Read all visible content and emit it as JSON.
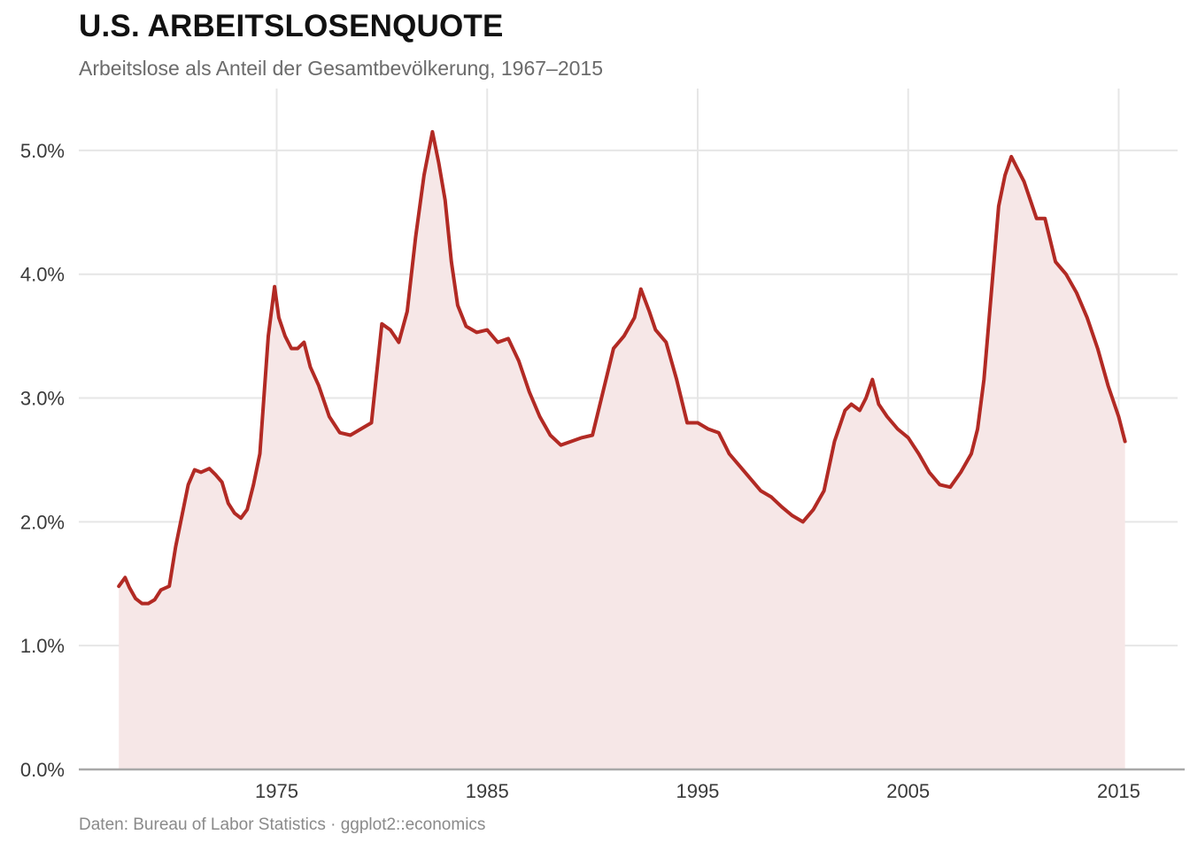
{
  "title": "U.S. ARBEITSLOSENQUOTE",
  "subtitle": "Arbeitslose als Anteil der Gesamtbevölkerung, 1967–2015",
  "caption": "Daten: Bureau of Labor Statistics · ggplot2::economics",
  "colors": {
    "line": "#b22a24",
    "area": "#f6e7e7",
    "grid": "#e6e6e6",
    "axis": "#a8a8a8"
  },
  "chart_data": {
    "type": "area",
    "title": "U.S. ARBEITSLOSENQUOTE",
    "subtitle": "Arbeitslose als Anteil der Gesamtbevölkerung, 1967–2015",
    "xlabel": "",
    "ylabel": "",
    "xlim": [
      1965.6,
      2017.8
    ],
    "ylim": [
      0,
      5.5
    ],
    "grid": true,
    "legend": "none",
    "x_ticks": [
      1975,
      1985,
      1995,
      2005,
      2015
    ],
    "x_tick_labels": [
      "1975",
      "1985",
      "1995",
      "2005",
      "2015"
    ],
    "y_ticks": [
      0,
      1,
      2,
      3,
      4,
      5
    ],
    "y_tick_labels": [
      "0.0%",
      "1.0%",
      "2.0%",
      "3.0%",
      "4.0%",
      "5.0%"
    ],
    "series": [
      {
        "x": [
          1967.5,
          1967.8,
          1968.0,
          1968.3,
          1968.6,
          1968.9,
          1969.2,
          1969.5,
          1969.9,
          1970.2,
          1970.5,
          1970.8,
          1971.1,
          1971.4,
          1971.8,
          1972.1,
          1972.4,
          1972.7,
          1973.0,
          1973.3,
          1973.6,
          1973.9,
          1974.2,
          1974.6,
          1974.9,
          1975.1,
          1975.4,
          1975.7,
          1976.0,
          1976.3,
          1976.6,
          1977.0,
          1977.5,
          1978.0,
          1978.5,
          1979.0,
          1979.5,
          1980.0,
          1980.4,
          1980.8,
          1981.2,
          1981.6,
          1982.0,
          1982.4,
          1982.7,
          1983.0,
          1983.3,
          1983.6,
          1984.0,
          1984.5,
          1985.0,
          1985.5,
          1986.0,
          1986.5,
          1987.0,
          1987.5,
          1988.0,
          1988.5,
          1989.0,
          1989.5,
          1990.0,
          1990.5,
          1991.0,
          1991.5,
          1992.0,
          1992.3,
          1992.7,
          1993.0,
          1993.5,
          1994.0,
          1994.5,
          1995.0,
          1995.5,
          1996.0,
          1996.5,
          1997.0,
          1997.5,
          1998.0,
          1998.5,
          1999.0,
          1999.5,
          2000.0,
          2000.5,
          2001.0,
          2001.5,
          2002.0,
          2002.3,
          2002.7,
          2003.0,
          2003.3,
          2003.6,
          2004.0,
          2004.5,
          2005.0,
          2005.5,
          2006.0,
          2006.5,
          2007.0,
          2007.5,
          2008.0,
          2008.3,
          2008.6,
          2009.0,
          2009.3,
          2009.6,
          2009.9,
          2010.2,
          2010.5,
          2010.8,
          2011.1,
          2011.5,
          2012.0,
          2012.5,
          2013.0,
          2013.5,
          2014.0,
          2014.5,
          2015.0,
          2015.3
        ],
        "values": [
          1.48,
          1.55,
          1.47,
          1.38,
          1.34,
          1.34,
          1.37,
          1.45,
          1.48,
          1.8,
          2.05,
          2.3,
          2.42,
          2.4,
          2.43,
          2.38,
          2.32,
          2.15,
          2.07,
          2.03,
          2.1,
          2.3,
          2.55,
          3.5,
          3.9,
          3.65,
          3.5,
          3.4,
          3.4,
          3.45,
          3.25,
          3.1,
          2.85,
          2.72,
          2.7,
          2.75,
          2.8,
          3.6,
          3.55,
          3.45,
          3.7,
          4.3,
          4.8,
          5.15,
          4.9,
          4.6,
          4.1,
          3.75,
          3.58,
          3.53,
          3.55,
          3.45,
          3.48,
          3.3,
          3.05,
          2.85,
          2.7,
          2.62,
          2.65,
          2.68,
          2.7,
          3.05,
          3.4,
          3.5,
          3.65,
          3.88,
          3.7,
          3.55,
          3.45,
          3.15,
          2.8,
          2.8,
          2.75,
          2.72,
          2.55,
          2.45,
          2.35,
          2.25,
          2.2,
          2.12,
          2.05,
          2.0,
          2.1,
          2.25,
          2.65,
          2.9,
          2.95,
          2.9,
          3.0,
          3.15,
          2.95,
          2.85,
          2.75,
          2.68,
          2.55,
          2.4,
          2.3,
          2.28,
          2.4,
          2.55,
          2.75,
          3.15,
          3.95,
          4.55,
          4.8,
          4.95,
          4.85,
          4.75,
          4.6,
          4.45,
          4.45,
          4.1,
          4.0,
          3.85,
          3.65,
          3.4,
          3.1,
          2.85,
          2.65
        ]
      }
    ]
  }
}
